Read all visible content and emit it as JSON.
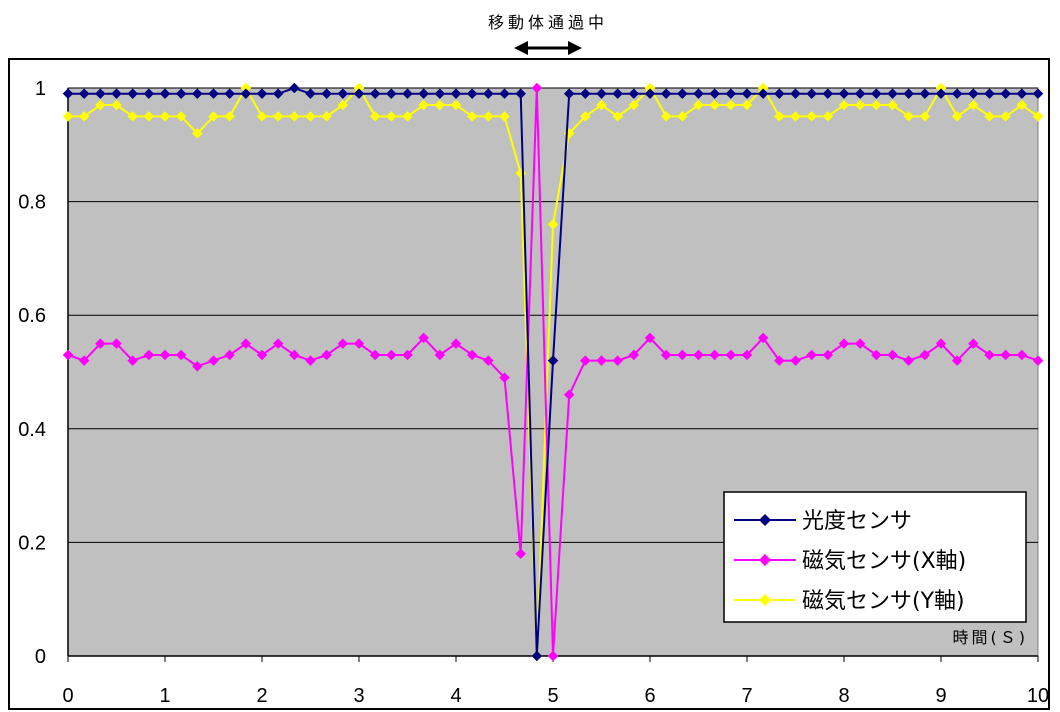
{
  "chart_data": {
    "type": "line",
    "annotation": "移動体通過中",
    "xlabel": "時間(Ｓ)",
    "ylabel": "",
    "xlim": [
      0,
      10
    ],
    "ylim": [
      0,
      1
    ],
    "x_ticks": [
      "0",
      "1",
      "2",
      "3",
      "4",
      "5",
      "6",
      "7",
      "8",
      "9",
      "10"
    ],
    "y_ticks": [
      "0",
      "0.2",
      "0.4",
      "0.6",
      "0.8",
      "1"
    ],
    "grid": "horizontal",
    "legend_position": "bottom-right",
    "x": [
      0,
      0.1667,
      0.3333,
      0.5,
      0.6667,
      0.8333,
      1.0,
      1.1667,
      1.3333,
      1.5,
      1.6667,
      1.8333,
      2.0,
      2.1667,
      2.3333,
      2.5,
      2.6667,
      2.8333,
      3.0,
      3.1667,
      3.3333,
      3.5,
      3.6667,
      3.8333,
      4.0,
      4.1667,
      4.3333,
      4.5,
      4.6667,
      4.8333,
      5.0,
      5.1667,
      5.3333,
      5.5,
      5.6667,
      5.8333,
      6.0,
      6.1667,
      6.3333,
      6.5,
      6.6667,
      6.8333,
      7.0,
      7.1667,
      7.3333,
      7.5,
      7.6667,
      7.8333,
      8.0,
      8.1667,
      8.3333,
      8.5,
      8.6667,
      8.8333,
      9.0,
      9.1667,
      9.3333,
      9.5,
      9.6667,
      9.8333,
      10.0
    ],
    "series": [
      {
        "name": "光度センサ",
        "color": "#000080",
        "values": [
          0.99,
          0.99,
          0.99,
          0.99,
          0.99,
          0.99,
          0.99,
          0.99,
          0.99,
          0.99,
          0.99,
          0.99,
          0.99,
          0.99,
          1.0,
          0.99,
          0.99,
          0.99,
          0.99,
          0.99,
          0.99,
          0.99,
          0.99,
          0.99,
          0.99,
          0.99,
          0.99,
          0.99,
          0.99,
          0.0,
          0.52,
          0.99,
          0.99,
          0.99,
          0.99,
          0.99,
          0.99,
          0.99,
          0.99,
          0.99,
          0.99,
          0.99,
          0.99,
          0.99,
          0.99,
          0.99,
          0.99,
          0.99,
          0.99,
          0.99,
          0.99,
          0.99,
          0.99,
          0.99,
          0.99,
          0.99,
          0.99,
          0.99,
          0.99,
          0.99,
          0.99
        ]
      },
      {
        "name": "磁気センサ(X軸)",
        "color": "#ff00ff",
        "values": [
          0.53,
          0.52,
          0.55,
          0.55,
          0.52,
          0.53,
          0.53,
          0.53,
          0.51,
          0.52,
          0.53,
          0.55,
          0.53,
          0.55,
          0.53,
          0.52,
          0.53,
          0.55,
          0.55,
          0.53,
          0.53,
          0.53,
          0.56,
          0.53,
          0.55,
          0.53,
          0.52,
          0.49,
          0.18,
          1.0,
          0.0,
          0.46,
          0.52,
          0.52,
          0.52,
          0.53,
          0.56,
          0.53,
          0.53,
          0.53,
          0.53,
          0.53,
          0.53,
          0.56,
          0.52,
          0.52,
          0.53,
          0.53,
          0.55,
          0.55,
          0.53,
          0.53,
          0.52,
          0.53,
          0.55,
          0.52,
          0.55,
          0.53,
          0.53,
          0.53,
          0.52
        ]
      },
      {
        "name": "磁気センサ(Y軸)",
        "color": "#ffff00",
        "values": [
          0.95,
          0.95,
          0.97,
          0.97,
          0.95,
          0.95,
          0.95,
          0.95,
          0.92,
          0.95,
          0.95,
          1.0,
          0.95,
          0.95,
          0.95,
          0.95,
          0.95,
          0.97,
          1.0,
          0.95,
          0.95,
          0.95,
          0.97,
          0.97,
          0.97,
          0.95,
          0.95,
          0.95,
          0.85,
          0.0,
          0.76,
          0.92,
          0.95,
          0.97,
          0.95,
          0.97,
          1.0,
          0.95,
          0.95,
          0.97,
          0.97,
          0.97,
          0.97,
          1.0,
          0.95,
          0.95,
          0.95,
          0.95,
          0.97,
          0.97,
          0.97,
          0.97,
          0.95,
          0.95,
          1.0,
          0.95,
          0.97,
          0.95,
          0.95,
          0.97,
          0.95
        ]
      }
    ]
  }
}
